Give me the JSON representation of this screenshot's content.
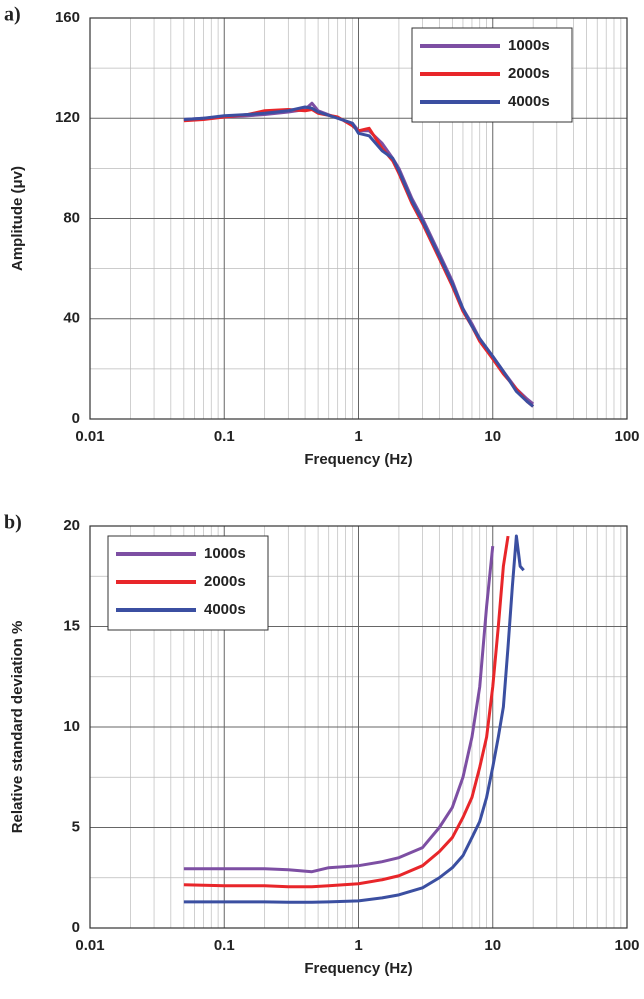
{
  "chart_data": [
    {
      "type": "line",
      "panel_label": "a)",
      "xlabel": "Frequency (Hz)",
      "ylabel": "Amplitude (μv)",
      "log_x": true,
      "grid": true,
      "legend_position": "upper right",
      "xlim": [
        0.01,
        100
      ],
      "xticks": [
        0.01,
        0.1,
        1,
        10,
        100
      ],
      "xminorticks": [
        0.02,
        0.03,
        0.04,
        0.05,
        0.06,
        0.07,
        0.08,
        0.09,
        0.2,
        0.3,
        0.4,
        0.5,
        0.6,
        0.7,
        0.8,
        0.9,
        2,
        3,
        4,
        5,
        6,
        7,
        8,
        9,
        20,
        30,
        40,
        50,
        60,
        70,
        80,
        90
      ],
      "ylim": [
        0,
        160
      ],
      "yticks": [
        0,
        40,
        80,
        120,
        160
      ],
      "yminorticks": [
        20,
        60,
        100,
        140
      ],
      "x": [
        0.05,
        0.07,
        0.1,
        0.15,
        0.2,
        0.3,
        0.4,
        0.45,
        0.5,
        0.7,
        0.9,
        1,
        1.2,
        1.5,
        1.8,
        2,
        2.5,
        3,
        4,
        5,
        6,
        7,
        8,
        10,
        12,
        15,
        18,
        20
      ],
      "series": [
        {
          "name": "1000s",
          "color": "#7d4fa3",
          "values": [
            119.5,
            120,
            120.5,
            121,
            121.5,
            122.5,
            123.5,
            126,
            123,
            120,
            118,
            115,
            115,
            110,
            104,
            100,
            88,
            80,
            66,
            55,
            44,
            38,
            32,
            25,
            19,
            12,
            8,
            6
          ]
        },
        {
          "name": "2000s",
          "color": "#e8262a",
          "values": [
            119,
            119.5,
            120.5,
            121.5,
            123,
            123.5,
            123,
            123.5,
            122,
            120.5,
            117,
            115,
            116,
            108,
            103,
            98,
            86,
            78,
            64,
            53,
            43,
            37,
            31,
            24,
            18,
            12,
            7,
            5
          ]
        },
        {
          "name": "4000s",
          "color": "#3b4fa1",
          "values": [
            119.5,
            120,
            121,
            121.5,
            122,
            123,
            124.5,
            124,
            122.5,
            120,
            118,
            114,
            113,
            107,
            104,
            99,
            87,
            79,
            65,
            54,
            44,
            37,
            32,
            25,
            19,
            11,
            7,
            5
          ]
        }
      ]
    },
    {
      "type": "line",
      "panel_label": "b)",
      "xlabel": "Frequency (Hz)",
      "ylabel": "Relative standard deviation %",
      "log_x": true,
      "grid": true,
      "legend_position": "upper left",
      "xlim": [
        0.01,
        100
      ],
      "xticks": [
        0.01,
        0.1,
        1,
        10,
        100
      ],
      "xminorticks": [
        0.02,
        0.03,
        0.04,
        0.05,
        0.06,
        0.07,
        0.08,
        0.09,
        0.2,
        0.3,
        0.4,
        0.5,
        0.6,
        0.7,
        0.8,
        0.9,
        2,
        3,
        4,
        5,
        6,
        7,
        8,
        9,
        20,
        30,
        40,
        50,
        60,
        70,
        80,
        90
      ],
      "ylim": [
        0,
        20
      ],
      "yticks": [
        0,
        5,
        10,
        15,
        20
      ],
      "yminorticks": [
        2.5,
        7.5,
        12.5,
        17.5
      ],
      "x": [
        0.05,
        0.1,
        0.2,
        0.3,
        0.45,
        0.6,
        1,
        1.5,
        2,
        3,
        4,
        5,
        6,
        7,
        8,
        9,
        10,
        11,
        12,
        13,
        14,
        15,
        16,
        17
      ],
      "series": [
        {
          "name": "1000s",
          "color": "#7d4fa3",
          "values": [
            2.95,
            2.95,
            2.95,
            2.9,
            2.8,
            3.0,
            3.1,
            3.3,
            3.5,
            4.0,
            5.0,
            6.0,
            7.5,
            9.5,
            12,
            16,
            19,
            null,
            null,
            null,
            null,
            null,
            null,
            null
          ]
        },
        {
          "name": "2000s",
          "color": "#e8262a",
          "values": [
            2.15,
            2.1,
            2.1,
            2.05,
            2.05,
            2.1,
            2.2,
            2.4,
            2.6,
            3.1,
            3.8,
            4.5,
            5.5,
            6.5,
            8,
            9.5,
            12,
            15,
            18,
            19.5,
            null,
            null,
            null,
            null
          ]
        },
        {
          "name": "4000s",
          "color": "#3b4fa1",
          "values": [
            1.3,
            1.3,
            1.3,
            1.28,
            1.28,
            1.3,
            1.35,
            1.5,
            1.65,
            2.0,
            2.5,
            3.0,
            3.6,
            4.5,
            5.3,
            6.5,
            8,
            9.5,
            11,
            14,
            17,
            19.5,
            18,
            17.8
          ]
        }
      ]
    }
  ]
}
